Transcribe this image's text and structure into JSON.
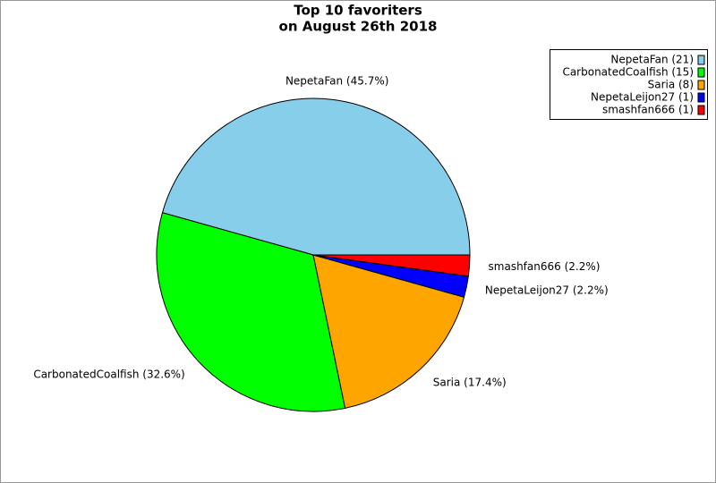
{
  "chart_data": {
    "type": "pie",
    "title": [
      "Top 10 favoriters",
      "on August 26th 2018"
    ],
    "values": [
      21,
      15,
      8,
      1,
      1
    ],
    "colors": [
      "#87ceeb",
      "#00ff00",
      "#ffa500",
      "#0000ff",
      "#ff0000"
    ],
    "legend_labels": [
      "NepetaFan (21)",
      "CarbonatedCoalfish (15)",
      "Saria (8)",
      "NepetaLeijon27 (1)",
      "smashfan666 (1)"
    ],
    "slice_labels": [
      "NepetaFan (45.7%)",
      "CarbonatedCoalfish (32.6%)",
      "Saria (17.4%)",
      "NepetaLeijon27 (2.2%)",
      "smashfan666 (2.2%)"
    ],
    "legend": "top-right"
  }
}
